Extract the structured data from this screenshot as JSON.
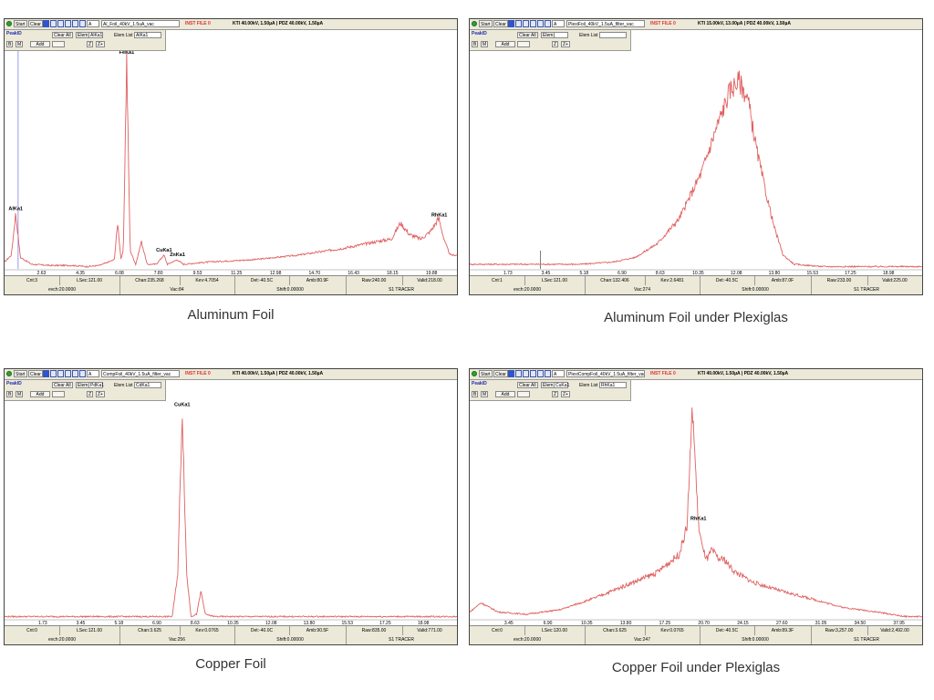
{
  "panels": [
    {
      "caption": "Aluminum Foil",
      "toolbar": {
        "start_label": "Start",
        "clear_label": "Clear",
        "mode_value": "A",
        "file_name": "Al_Foil_40kV_1.5uA_vac",
        "inst_label": "INST FILE 0",
        "kti_text": "KTI 40.00kV, 1.50µA | PDZ 40.00kV, 1.50µA"
      },
      "peak_panel": {
        "title": "PeakID",
        "clear_all": "Clear All",
        "elem": "Elem",
        "elem_value": "AlKa1",
        "elem_list": "Elem List",
        "elem_list_value": "AlKa1",
        "b": "B",
        "m": "M",
        "add": "Add",
        "z": "Z",
        "zplus": "Z+"
      },
      "status": {
        "cnt": "Cnt:3",
        "lsec": "LSec:121.00",
        "chan": "Chan:235.268",
        "kev": "Kev:4.7054",
        "det": "Det:-40.5C",
        "amb": "Amb:80.9F",
        "raw": "Raw:240.00",
        "valid": "Valid:218.00",
        "evch": "evch:20.0000",
        "vac": "Vac:84",
        "shift": "Shift:0.00000",
        "tracer": "S1 TRACER"
      },
      "chart_data": {
        "type": "line",
        "x_ticks": [
          "2.63",
          "4.35",
          "6.08",
          "7.80",
          "9.53",
          "11.25",
          "12.98",
          "14.70",
          "16.43",
          "18.15",
          "19.88"
        ],
        "xlim": [
          1.0,
          21.0
        ],
        "ylim": [
          0,
          100
        ],
        "cursor_x": 1.6,
        "peaks": [
          {
            "label": "AlKa1",
            "x": 1.49
          },
          {
            "label": "FeKa1",
            "x": 6.4
          },
          {
            "label": "CuKa1",
            "x": 8.05
          },
          {
            "label": "ZnKa1",
            "x": 8.64
          },
          {
            "label": "RhKa1",
            "x": 20.22
          }
        ],
        "points": [
          [
            1.0,
            3
          ],
          [
            1.3,
            6
          ],
          [
            1.49,
            24
          ],
          [
            1.7,
            5
          ],
          [
            2.2,
            2
          ],
          [
            3.0,
            1.5
          ],
          [
            4.0,
            1.5
          ],
          [
            4.6,
            1
          ],
          [
            5.2,
            1.5
          ],
          [
            5.85,
            4
          ],
          [
            6.0,
            20
          ],
          [
            6.15,
            4
          ],
          [
            6.25,
            8
          ],
          [
            6.4,
            92
          ],
          [
            6.55,
            8
          ],
          [
            6.8,
            2
          ],
          [
            7.05,
            12
          ],
          [
            7.3,
            2
          ],
          [
            7.7,
            2
          ],
          [
            8.05,
            6
          ],
          [
            8.2,
            2
          ],
          [
            8.64,
            4
          ],
          [
            8.9,
            2
          ],
          [
            10.0,
            3
          ],
          [
            12.0,
            4
          ],
          [
            14.0,
            6
          ],
          [
            16.0,
            9
          ],
          [
            17.5,
            12
          ],
          [
            18.1,
            13
          ],
          [
            18.5,
            20
          ],
          [
            18.9,
            15
          ],
          [
            19.4,
            13
          ],
          [
            19.8,
            16
          ],
          [
            20.2,
            22
          ],
          [
            20.45,
            12
          ],
          [
            20.7,
            6
          ],
          [
            21.0,
            6
          ]
        ]
      }
    },
    {
      "caption": "Aluminum Foil under Plexiglas",
      "toolbar": {
        "start_label": "Start",
        "clear_label": "Clear",
        "mode_value": "A",
        "file_name": "PlexiFoil_40kV_1.5uA_filter_vac",
        "inst_label": "INST FILE 0",
        "kti_text": "KTI 15.00kV, 13.00µA | PDZ 40.00kV, 1.50µA"
      },
      "peak_panel": {
        "title": "PeakID",
        "clear_all": "Clear All",
        "elem": "Elem",
        "elem_value": "",
        "elem_list": "Elem List",
        "elem_list_value": "",
        "b": "B",
        "m": "M",
        "add": "Add",
        "z": "Z",
        "zplus": "Z+"
      },
      "status": {
        "cnt": "Cnt:1",
        "lsec": "LSec:121.00",
        "chan": "Chan:132.406",
        "kev": "Kev:2.6481",
        "det": "Det:-40.5C",
        "amb": "Amb:87.0F",
        "raw": "Raw:233.00",
        "valid": "Valid:225.00",
        "evch": "evch:20.0000",
        "vac": "Vac:274",
        "shift": "Shift:0.00000",
        "tracer": "S1 TRACER"
      },
      "chart_data": {
        "type": "line",
        "x_ticks": [
          "1.73",
          "3.45",
          "5.18",
          "6.90",
          "8.63",
          "10.35",
          "12.08",
          "13.80",
          "15.53",
          "17.25",
          "18.98"
        ],
        "xlim": [
          0.0,
          20.5
        ],
        "ylim": [
          0,
          100
        ],
        "cursor_x": 3.2,
        "peaks": [],
        "points": [
          [
            0.0,
            2
          ],
          [
            3.0,
            2
          ],
          [
            5.0,
            2
          ],
          [
            6.5,
            3
          ],
          [
            7.5,
            5
          ],
          [
            8.5,
            11
          ],
          [
            9.5,
            22
          ],
          [
            10.5,
            42
          ],
          [
            11.2,
            62
          ],
          [
            11.8,
            78
          ],
          [
            12.2,
            82
          ],
          [
            12.6,
            74
          ],
          [
            13.0,
            52
          ],
          [
            13.4,
            34
          ],
          [
            13.8,
            18
          ],
          [
            14.2,
            6
          ],
          [
            14.7,
            2
          ],
          [
            16.0,
            1
          ],
          [
            20.5,
            1
          ]
        ]
      }
    },
    {
      "caption": "Copper Foil",
      "toolbar": {
        "start_label": "Start",
        "clear_label": "Clear",
        "mode_value": "A",
        "file_name": "CompFoil_40kV_1.5uA_filter_vac",
        "inst_label": "INST FILE 0",
        "kti_text": "KTI 40.00kV, 1.50µA | PDZ 40.00kV, 1.50µA"
      },
      "peak_panel": {
        "title": "PeakID",
        "clear_all": "Clear All",
        "elem": "Elem",
        "elem_value": "PdKa1",
        "elem_list": "Elem List",
        "elem_list_value": "CdKa1",
        "b": "B",
        "m": "M",
        "add": "Add",
        "z": "Z",
        "zplus": "Z+"
      },
      "status": {
        "cnt": "Cnt:0",
        "lsec": "LSec:121.00",
        "chan": "Chan:3.625",
        "kev": "Kev:0.0765",
        "det": "Det:-40.0C",
        "amb": "Amb:90.5F",
        "raw": "Raw:835.00",
        "valid": "Valid:771.00",
        "evch": "evch:20.0000",
        "vac": "Vac:256",
        "shift": "Shift:0.00000",
        "tracer": "S1 TRACER"
      },
      "chart_data": {
        "type": "line",
        "x_ticks": [
          "1.73",
          "3.45",
          "5.18",
          "6.90",
          "8.63",
          "10.35",
          "12.08",
          "13.80",
          "15.53",
          "17.25",
          "18.98"
        ],
        "xlim": [
          0.0,
          20.5
        ],
        "ylim": [
          0,
          100
        ],
        "cursor_x": -1,
        "peaks": [
          {
            "label": "CuKa1",
            "x": 8.05
          }
        ],
        "points": [
          [
            0.0,
            1
          ],
          [
            7.6,
            1
          ],
          [
            7.85,
            20
          ],
          [
            8.05,
            91
          ],
          [
            8.25,
            20
          ],
          [
            8.45,
            1
          ],
          [
            8.7,
            2
          ],
          [
            8.9,
            12
          ],
          [
            9.1,
            2
          ],
          [
            9.5,
            1
          ],
          [
            20.5,
            1
          ]
        ]
      }
    },
    {
      "caption": "Copper Foil under Plexiglas",
      "toolbar": {
        "start_label": "Start",
        "clear_label": "Clear",
        "mode_value": "A",
        "file_name": "PlexiCompFoil_40kV_1.5uA_filter_vac",
        "inst_label": "INST FILE 0",
        "kti_text": "KTI 40.00kV, 1.50µA | PDZ 40.00kV, 1.50µA"
      },
      "peak_panel": {
        "title": "PeakID",
        "clear_all": "Clear All",
        "elem": "Elem",
        "elem_value": "CuKa1",
        "elem_list": "Elem List",
        "elem_list_value": "RhKa1",
        "b": "B",
        "m": "M",
        "add": "Add",
        "z": "Z",
        "zplus": "Z+"
      },
      "status": {
        "cnt": "Cnt:0",
        "lsec": "LSec:120.00",
        "chan": "Chan:3.625",
        "kev": "Kev:0.0765",
        "det": "Det:-40.5C",
        "amb": "Amb:89.3F",
        "raw": "Raw:3,257.00",
        "valid": "Valid:2,492.00",
        "evch": "evch:20.0000",
        "vac": "Vac:247",
        "shift": "Shift:0.00000",
        "tracer": "S1 TRACER"
      },
      "chart_data": {
        "type": "line",
        "x_ticks": [
          "3.45",
          "6.90",
          "10.35",
          "13.80",
          "17.25",
          "20.70",
          "24.15",
          "27.60",
          "31.05",
          "34.50",
          "37.95"
        ],
        "xlim": [
          0.0,
          40.0
        ],
        "ylim": [
          0,
          100
        ],
        "cursor_x": -1,
        "peaks": [
          {
            "label": "RhKa1",
            "x": 20.22
          }
        ],
        "points": [
          [
            0.0,
            3
          ],
          [
            1.0,
            7
          ],
          [
            2.5,
            3
          ],
          [
            5.0,
            2
          ],
          [
            8.0,
            4
          ],
          [
            11.0,
            9
          ],
          [
            14.0,
            15
          ],
          [
            16.5,
            20
          ],
          [
            18.5,
            28
          ],
          [
            19.2,
            40
          ],
          [
            19.7,
            92
          ],
          [
            20.2,
            42
          ],
          [
            20.6,
            30
          ],
          [
            21.0,
            26
          ],
          [
            21.4,
            30
          ],
          [
            22.0,
            26
          ],
          [
            22.5,
            26
          ],
          [
            23.3,
            21
          ],
          [
            25.0,
            16
          ],
          [
            27.6,
            12
          ],
          [
            30.0,
            9
          ],
          [
            33.0,
            5
          ],
          [
            36.0,
            3
          ],
          [
            38.5,
            1
          ],
          [
            40.0,
            1
          ]
        ]
      }
    }
  ]
}
